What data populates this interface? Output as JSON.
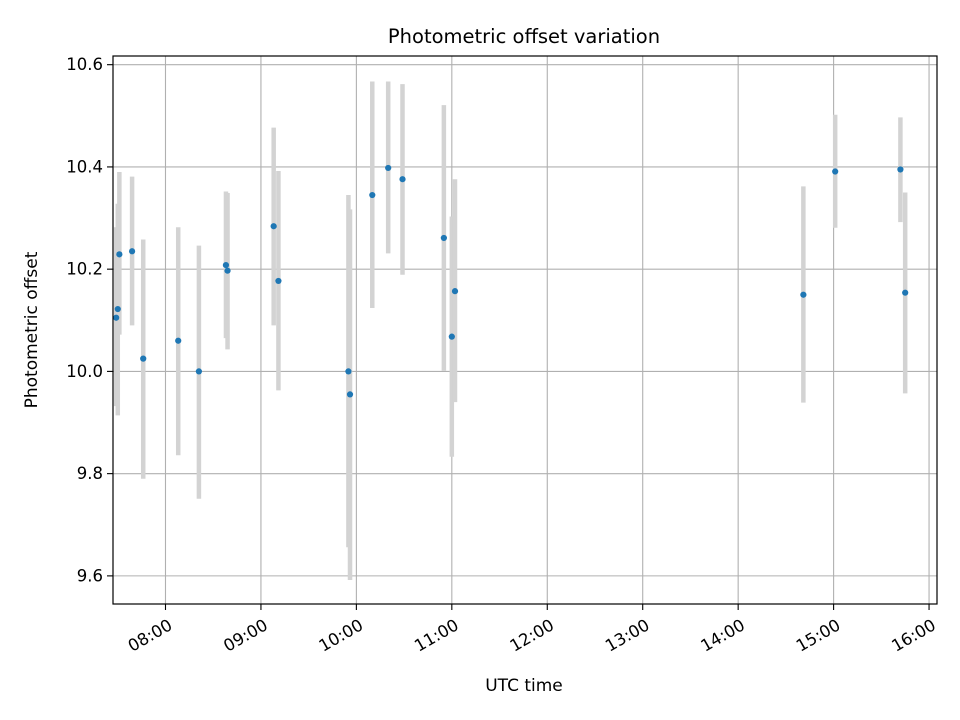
{
  "chart_data": {
    "type": "scatter",
    "title": "Photometric offset variation",
    "xlabel": "UTC time",
    "ylabel": "Photometric offset",
    "x_unit": "UTC time (HH:MM)",
    "xlim": [
      "07:27",
      "16:05"
    ],
    "ylim": [
      9.545,
      10.617
    ],
    "grid": true,
    "x_ticks": [
      "08:00",
      "09:00",
      "10:00",
      "11:00",
      "12:00",
      "13:00",
      "14:00",
      "15:00",
      "16:00"
    ],
    "y_ticks": [
      "9.6",
      "9.8",
      "10.0",
      "10.2",
      "10.4",
      "10.6"
    ],
    "colors": {
      "points": "#1f77b4",
      "errorbars": "#d3d3d3",
      "grid": "#b0b0b0"
    },
    "points": [
      {
        "x": "07:29",
        "y": 10.105,
        "ylow": 9.932,
        "yhigh": 10.282
      },
      {
        "x": "07:30",
        "y": 10.122,
        "ylow": 9.914,
        "yhigh": 10.328
      },
      {
        "x": "07:31",
        "y": 10.229,
        "ylow": 10.072,
        "yhigh": 10.39
      },
      {
        "x": "07:39",
        "y": 10.235,
        "ylow": 10.09,
        "yhigh": 10.381
      },
      {
        "x": "07:46",
        "y": 10.025,
        "ylow": 9.79,
        "yhigh": 10.258
      },
      {
        "x": "08:08",
        "y": 10.06,
        "ylow": 9.836,
        "yhigh": 10.282
      },
      {
        "x": "08:21",
        "y": 10.0,
        "ylow": 9.751,
        "yhigh": 10.246
      },
      {
        "x": "08:38",
        "y": 10.208,
        "ylow": 10.065,
        "yhigh": 10.352
      },
      {
        "x": "08:39",
        "y": 10.197,
        "ylow": 10.043,
        "yhigh": 10.349
      },
      {
        "x": "09:08",
        "y": 10.284,
        "ylow": 10.09,
        "yhigh": 10.477
      },
      {
        "x": "09:11",
        "y": 10.177,
        "ylow": 9.963,
        "yhigh": 10.392
      },
      {
        "x": "09:55",
        "y": 10.0,
        "ylow": 9.656,
        "yhigh": 10.345
      },
      {
        "x": "09:56",
        "y": 9.955,
        "ylow": 9.592,
        "yhigh": 10.317
      },
      {
        "x": "10:10",
        "y": 10.345,
        "ylow": 10.124,
        "yhigh": 10.567
      },
      {
        "x": "10:20",
        "y": 10.398,
        "ylow": 10.231,
        "yhigh": 10.567
      },
      {
        "x": "10:29",
        "y": 10.376,
        "ylow": 10.189,
        "yhigh": 10.562
      },
      {
        "x": "10:55",
        "y": 10.261,
        "ylow": 10.001,
        "yhigh": 10.521
      },
      {
        "x": "11:00",
        "y": 10.068,
        "ylow": 9.833,
        "yhigh": 10.303
      },
      {
        "x": "11:02",
        "y": 10.157,
        "ylow": 9.94,
        "yhigh": 10.376
      },
      {
        "x": "14:41",
        "y": 10.15,
        "ylow": 9.939,
        "yhigh": 10.362
      },
      {
        "x": "15:01",
        "y": 10.391,
        "ylow": 10.281,
        "yhigh": 10.502
      },
      {
        "x": "15:42",
        "y": 10.395,
        "ylow": 10.292,
        "yhigh": 10.497
      },
      {
        "x": "15:45",
        "y": 10.154,
        "ylow": 9.957,
        "yhigh": 10.35
      }
    ]
  }
}
